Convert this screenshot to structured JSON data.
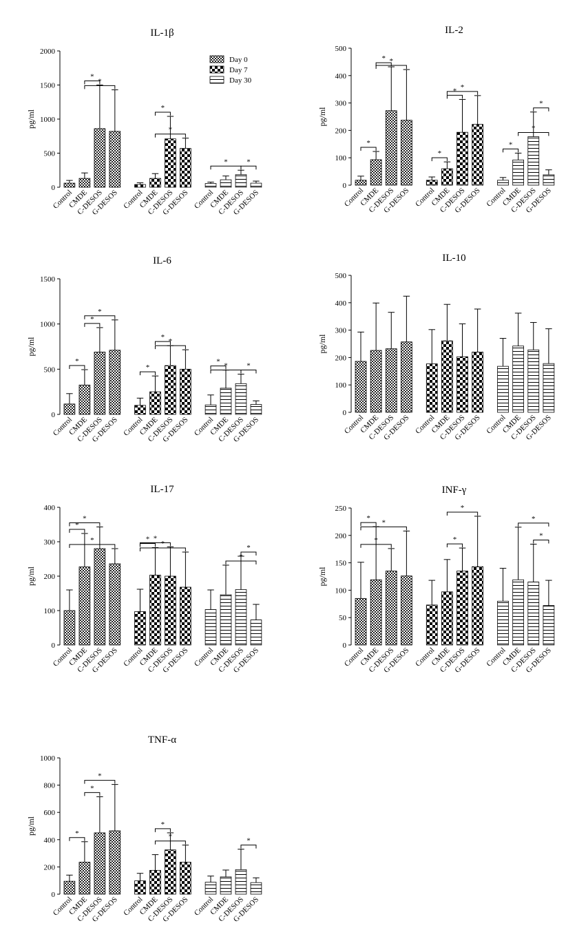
{
  "legend": {
    "items": [
      {
        "label": "Day 0",
        "pattern": "pat-day0"
      },
      {
        "label": "Day 7",
        "pattern": "pat-day7"
      },
      {
        "label": "Day 30",
        "pattern": "pat-day30"
      }
    ]
  },
  "chart_data": [
    {
      "type": "bar",
      "title": "IL-1β",
      "ylabel": "pg/ml",
      "ylim": [
        0,
        2000
      ],
      "yticks": [
        "0",
        "500",
        "1000",
        "1500",
        "2000"
      ],
      "categories": [
        "Control",
        "CMDE",
        "C-DESOS",
        "G-DESOS"
      ],
      "series": [
        {
          "name": "Day 0",
          "values": [
            60,
            130,
            860,
            820
          ],
          "errors": [
            40,
            80,
            640,
            610
          ]
        },
        {
          "name": "Day 7",
          "values": [
            40,
            130,
            710,
            570
          ],
          "errors": [
            25,
            70,
            330,
            150
          ]
        },
        {
          "name": "Day 30",
          "values": [
            55,
            110,
            185,
            60
          ],
          "errors": [
            20,
            55,
            65,
            30
          ]
        }
      ],
      "significance": [
        {
          "series": 0,
          "from": 1,
          "to": 2,
          "mark": "*"
        },
        {
          "series": 0,
          "from": 1,
          "to": 3,
          "mark": "*"
        },
        {
          "series": 1,
          "from": 1,
          "to": 2,
          "mark": "*"
        },
        {
          "series": 1,
          "from": 1,
          "to": 3,
          "mark": "*"
        },
        {
          "series": 2,
          "from": 0,
          "to": 2,
          "mark": "*"
        },
        {
          "series": 2,
          "from": 2,
          "to": 3,
          "mark": "*"
        }
      ]
    },
    {
      "type": "bar",
      "title": "IL-2",
      "ylabel": "pg/ml",
      "ylim": [
        0,
        500
      ],
      "yticks": [
        "0",
        "100",
        "200",
        "300",
        "400",
        "500"
      ],
      "categories": [
        "Control",
        "CMDE",
        "C-DESOS",
        "G-DESOS"
      ],
      "series": [
        {
          "name": "Day 0",
          "values": [
            18,
            93,
            272,
            237
          ],
          "errors": [
            15,
            30,
            160,
            185
          ]
        },
        {
          "name": "Day 7",
          "values": [
            18,
            60,
            193,
            222
          ],
          "errors": [
            12,
            25,
            120,
            105
          ]
        },
        {
          "name": "Day 30",
          "values": [
            18,
            92,
            177,
            38
          ],
          "errors": [
            10,
            25,
            90,
            18
          ]
        }
      ],
      "significance": [
        {
          "series": 0,
          "from": 0,
          "to": 1,
          "mark": "*"
        },
        {
          "series": 0,
          "from": 1,
          "to": 2,
          "mark": "*"
        },
        {
          "series": 0,
          "from": 1,
          "to": 3,
          "mark": "*"
        },
        {
          "series": 1,
          "from": 0,
          "to": 1,
          "mark": "*"
        },
        {
          "series": 1,
          "from": 1,
          "to": 2,
          "mark": "*"
        },
        {
          "series": 1,
          "from": 1,
          "to": 3,
          "mark": "*"
        },
        {
          "series": 2,
          "from": 0,
          "to": 1,
          "mark": "*"
        },
        {
          "series": 2,
          "from": 1,
          "to": 3,
          "mark": "*"
        },
        {
          "series": 2,
          "from": 2,
          "to": 3,
          "mark": "*"
        }
      ]
    },
    {
      "type": "bar",
      "title": "IL-6",
      "ylabel": "pg/ml",
      "ylim": [
        0,
        1500
      ],
      "yticks": [
        "0",
        "500",
        "1000",
        "1500"
      ],
      "categories": [
        "Control",
        "CMDE",
        "C-DESOS",
        "G-DESOS"
      ],
      "series": [
        {
          "name": "Day 0",
          "values": [
            115,
            325,
            690,
            710
          ],
          "errors": [
            115,
            170,
            270,
            335
          ]
        },
        {
          "name": "Day 7",
          "values": [
            100,
            250,
            540,
            500
          ],
          "errors": [
            80,
            175,
            220,
            215
          ]
        },
        {
          "name": "Day 30",
          "values": [
            105,
            290,
            340,
            110
          ],
          "errors": [
            110,
            200,
            105,
            40
          ]
        }
      ],
      "significance": [
        {
          "series": 0,
          "from": 0,
          "to": 1,
          "mark": "*"
        },
        {
          "series": 0,
          "from": 1,
          "to": 2,
          "mark": "*"
        },
        {
          "series": 0,
          "from": 1,
          "to": 3,
          "mark": "*"
        },
        {
          "series": 1,
          "from": 0,
          "to": 1,
          "mark": "*"
        },
        {
          "series": 1,
          "from": 1,
          "to": 2,
          "mark": "*"
        },
        {
          "series": 1,
          "from": 1,
          "to": 3,
          "mark": "*"
        },
        {
          "series": 2,
          "from": 0,
          "to": 1,
          "mark": "*"
        },
        {
          "series": 2,
          "from": 0,
          "to": 2,
          "mark": "*"
        },
        {
          "series": 2,
          "from": 2,
          "to": 3,
          "mark": "*"
        }
      ]
    },
    {
      "type": "bar",
      "title": "IL-10",
      "ylabel": "pg/ml",
      "ylim": [
        0,
        500
      ],
      "yticks": [
        "0",
        "100",
        "200",
        "300",
        "400",
        "500"
      ],
      "categories": [
        "Control",
        "CMDE",
        "C-DESOS",
        "G-DESOS"
      ],
      "series": [
        {
          "name": "Day 0",
          "values": [
            186,
            226,
            232,
            257
          ],
          "errors": [
            107,
            173,
            133,
            167
          ]
        },
        {
          "name": "Day 7",
          "values": [
            177,
            261,
            203,
            220
          ],
          "errors": [
            125,
            133,
            120,
            157
          ]
        },
        {
          "name": "Day 30",
          "values": [
            168,
            242,
            228,
            178
          ],
          "errors": [
            102,
            120,
            100,
            127
          ]
        }
      ],
      "significance": []
    },
    {
      "type": "bar",
      "title": "IL-17",
      "ylabel": "pg/ml",
      "ylim": [
        0,
        400
      ],
      "yticks": [
        "0",
        "100",
        "200",
        "300",
        "400"
      ],
      "categories": [
        "Control",
        "CMDE",
        "C-DESOS",
        "G-DESOS"
      ],
      "series": [
        {
          "name": "Day 0",
          "values": [
            100,
            227,
            280,
            236
          ],
          "errors": [
            60,
            97,
            63,
            44
          ]
        },
        {
          "name": "Day 7",
          "values": [
            97,
            203,
            200,
            168
          ],
          "errors": [
            65,
            80,
            85,
            102
          ]
        },
        {
          "name": "Day 30",
          "values": [
            103,
            146,
            161,
            73
          ],
          "errors": [
            57,
            86,
            97,
            45
          ]
        }
      ],
      "significance": [
        {
          "series": 0,
          "from": 0,
          "to": 1,
          "mark": "*"
        },
        {
          "series": 0,
          "from": 0,
          "to": 2,
          "mark": "*"
        },
        {
          "series": 0,
          "from": 0,
          "to": 3,
          "mark": "*"
        },
        {
          "series": 1,
          "from": 0,
          "to": 1,
          "mark": "*"
        },
        {
          "series": 1,
          "from": 0,
          "to": 2,
          "mark": "*"
        },
        {
          "series": 1,
          "from": 0,
          "to": 3,
          "mark": "*"
        },
        {
          "series": 2,
          "from": 1,
          "to": 3,
          "mark": "*"
        },
        {
          "series": 2,
          "from": 2,
          "to": 3,
          "mark": "*"
        }
      ]
    },
    {
      "type": "bar",
      "title": "INF-γ",
      "ylabel": "pg/ml",
      "ylim": [
        0,
        250
      ],
      "yticks": [
        "0",
        "50",
        "100",
        "150",
        "200",
        "250"
      ],
      "categories": [
        "Control",
        "CMDE",
        "C-DESOS",
        "G-DESOS"
      ],
      "series": [
        {
          "name": "Day 0",
          "values": [
            85,
            119,
            135,
            126
          ],
          "errors": [
            66,
            97,
            41,
            82
          ]
        },
        {
          "name": "Day 7",
          "values": [
            73,
            97,
            135,
            143
          ],
          "errors": [
            45,
            59,
            42,
            92
          ]
        },
        {
          "name": "Day 30",
          "values": [
            80,
            119,
            115,
            72
          ],
          "errors": [
            60,
            96,
            69,
            46
          ]
        }
      ],
      "significance": [
        {
          "series": 0,
          "from": 0,
          "to": 1,
          "mark": "*"
        },
        {
          "series": 0,
          "from": 0,
          "to": 2,
          "mark": "*"
        },
        {
          "series": 0,
          "from": 0,
          "to": 3,
          "mark": "*"
        },
        {
          "series": 1,
          "from": 1,
          "to": 2,
          "mark": "*"
        },
        {
          "series": 1,
          "from": 1,
          "to": 3,
          "mark": "*"
        },
        {
          "series": 2,
          "from": 1,
          "to": 3,
          "mark": "*"
        },
        {
          "series": 2,
          "from": 2,
          "to": 3,
          "mark": "*"
        }
      ]
    },
    {
      "type": "bar",
      "title": "TNF-α",
      "ylabel": "pg/ml",
      "ylim": [
        0,
        1000
      ],
      "yticks": [
        "0",
        "200",
        "400",
        "600",
        "800",
        "1000"
      ],
      "categories": [
        "Control",
        "CMDE",
        "C-DESOS",
        "G-DESOS"
      ],
      "series": [
        {
          "name": "Day 0",
          "values": [
            95,
            235,
            450,
            465
          ],
          "errors": [
            45,
            150,
            265,
            340
          ]
        },
        {
          "name": "Day 7",
          "values": [
            98,
            175,
            325,
            235
          ],
          "errors": [
            55,
            115,
            125,
            125
          ]
        },
        {
          "name": "Day 30",
          "values": [
            88,
            127,
            180,
            85
          ],
          "errors": [
            45,
            50,
            150,
            35
          ]
        }
      ],
      "significance": [
        {
          "series": 0,
          "from": 0,
          "to": 1,
          "mark": "*"
        },
        {
          "series": 0,
          "from": 1,
          "to": 2,
          "mark": "*"
        },
        {
          "series": 0,
          "from": 1,
          "to": 3,
          "mark": "*"
        },
        {
          "series": 1,
          "from": 1,
          "to": 2,
          "mark": "*"
        },
        {
          "series": 1,
          "from": 1,
          "to": 3,
          "mark": "*"
        },
        {
          "series": 2,
          "from": 2,
          "to": 3,
          "mark": "*"
        }
      ]
    }
  ]
}
